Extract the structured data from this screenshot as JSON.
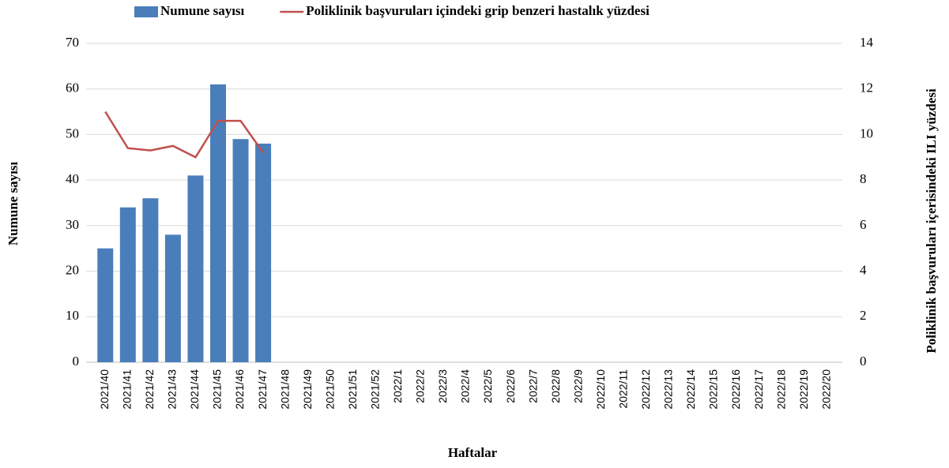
{
  "chart_data": {
    "type": "bar",
    "x_label": "Haftalar",
    "y_label": "Numune sayısı",
    "y2_label": "Poliklinik başvuruları içerisindeki ILI yüzdesi",
    "categories": [
      "2021/40",
      "2021/41",
      "2021/42",
      "2021/43",
      "2021/44",
      "2021/45",
      "2021/46",
      "2021/47",
      "2021/48",
      "2021/49",
      "2021/50",
      "2021/51",
      "2021/52",
      "2022/1",
      "2022/2",
      "2022/3",
      "2022/4",
      "2022/5",
      "2022/6",
      "2022/7",
      "2022/8",
      "2022/9",
      "2022/10",
      "2022/11",
      "2022/12",
      "2022/13",
      "2022/14",
      "2022/15",
      "2022/16",
      "2022/17",
      "2022/18",
      "2022/19",
      "2022/20"
    ],
    "series": [
      {
        "name": "Numune sayısı",
        "type": "bar",
        "color": "#4a7ebb",
        "values": [
          25,
          34,
          36,
          28,
          41,
          61,
          49,
          48,
          null,
          null,
          null,
          null,
          null,
          null,
          null,
          null,
          null,
          null,
          null,
          null,
          null,
          null,
          null,
          null,
          null,
          null,
          null,
          null,
          null,
          null,
          null,
          null,
          null
        ]
      },
      {
        "name": "Poliklinik başvuruları içindeki grip benzeri hastalık yüzdesi",
        "type": "line",
        "axis": "y2",
        "color": "#c0504d",
        "values": [
          11.0,
          9.4,
          9.3,
          9.5,
          9.0,
          10.6,
          10.6,
          9.2,
          null,
          null,
          null,
          null,
          null,
          null,
          null,
          null,
          null,
          null,
          null,
          null,
          null,
          null,
          null,
          null,
          null,
          null,
          null,
          null,
          null,
          null,
          null,
          null,
          null
        ]
      }
    ],
    "ylim": [
      0,
      70
    ],
    "yticks": [
      0,
      10,
      20,
      30,
      40,
      50,
      60,
      70
    ],
    "y2lim": [
      0,
      14
    ],
    "y2ticks": [
      0,
      2,
      4,
      6,
      8,
      10,
      12,
      14
    ],
    "grid": true
  }
}
